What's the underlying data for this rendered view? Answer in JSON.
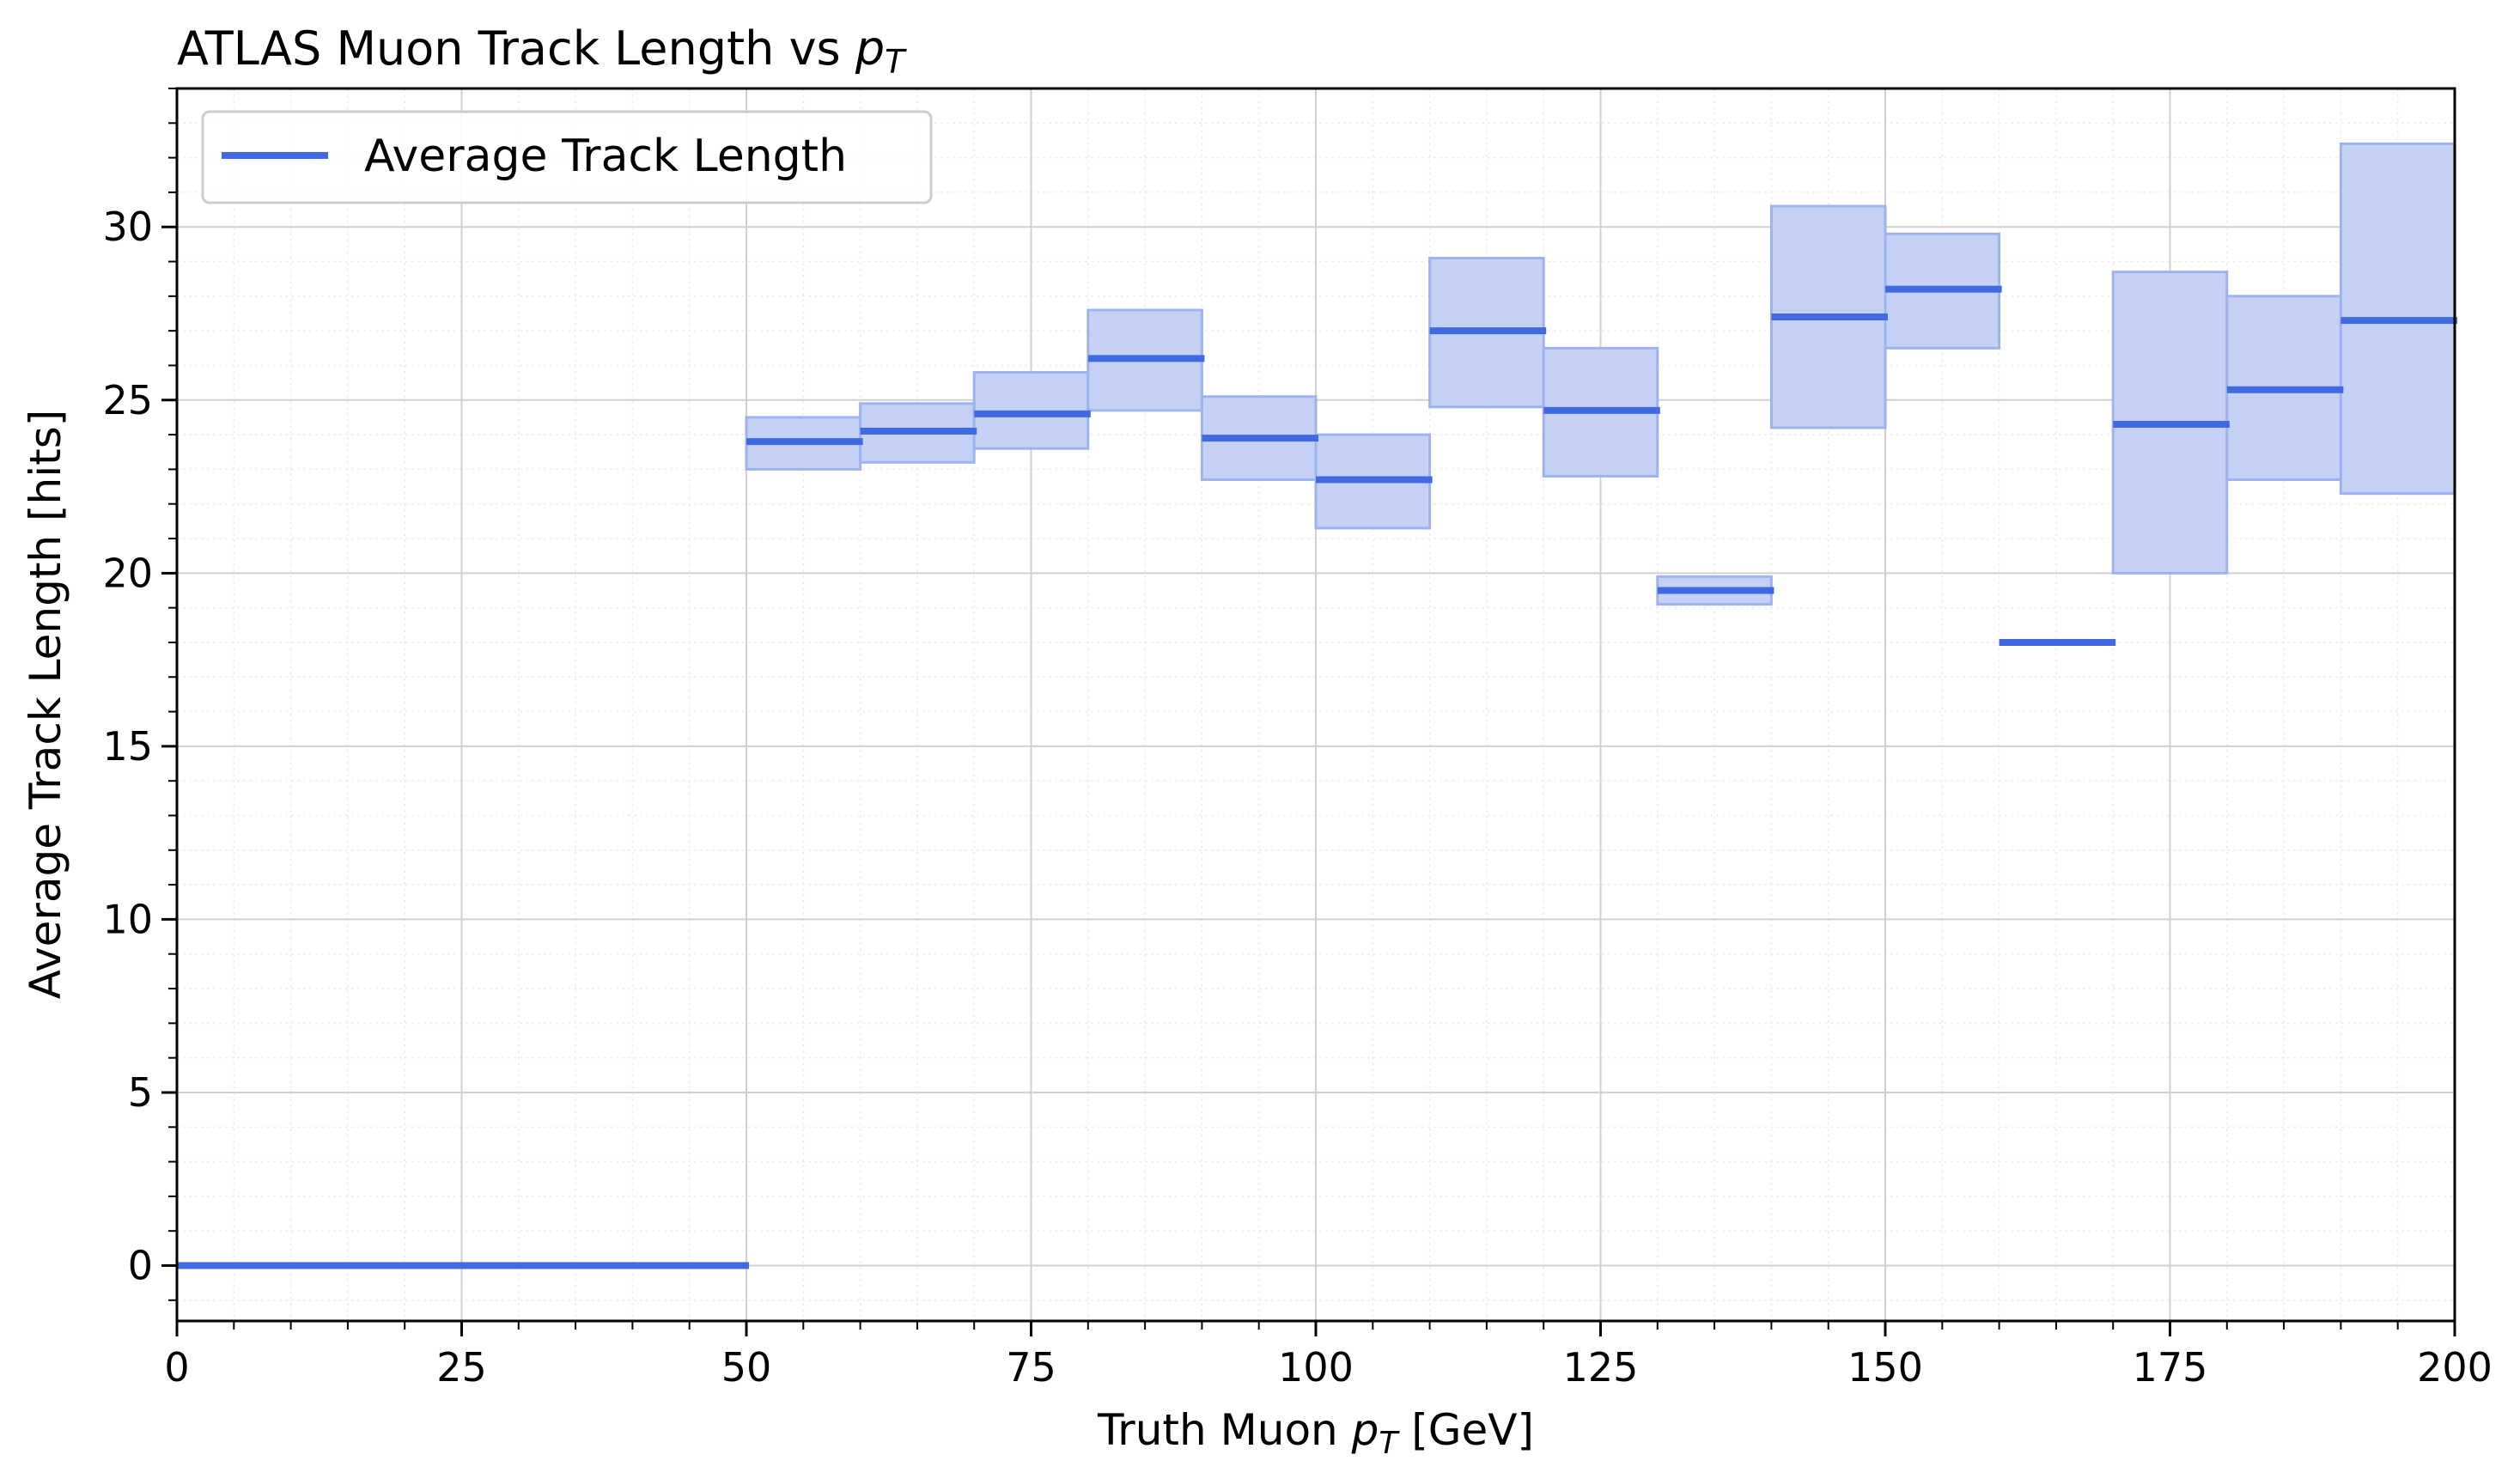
{
  "chart_data": {
    "type": "bar",
    "title": "ATLAS Muon Track Length vs ",
    "title_math": "p",
    "title_sub": "T",
    "xlabel": "Truth Muon ",
    "xlabel_math": "p",
    "xlabel_sub": "T",
    "xlabel_unit": " [GeV]",
    "ylabel": "Average Track Length [hits]",
    "xlim": [
      0,
      200
    ],
    "ylim": [
      -1.6,
      34
    ],
    "xticks": [
      "0",
      "25",
      "50",
      "75",
      "100",
      "125",
      "150",
      "175",
      "200"
    ],
    "yticks": [
      "0",
      "5",
      "10",
      "15",
      "20",
      "25",
      "30"
    ],
    "grid": true,
    "legend": {
      "placement": "top-left",
      "label": "Average Track Length"
    },
    "colors": {
      "line": "#4169e1",
      "band": "#c5d1f4",
      "band_edge": "#9eb3ee"
    },
    "bins": [
      {
        "x0": 0,
        "x1": 10,
        "mean": 0,
        "low": 0,
        "high": 0
      },
      {
        "x0": 10,
        "x1": 20,
        "mean": 0,
        "low": 0,
        "high": 0
      },
      {
        "x0": 20,
        "x1": 30,
        "mean": 0,
        "low": 0,
        "high": 0
      },
      {
        "x0": 30,
        "x1": 40,
        "mean": 0,
        "low": 0,
        "high": 0
      },
      {
        "x0": 40,
        "x1": 50,
        "mean": 0,
        "low": 0,
        "high": 0
      },
      {
        "x0": 50,
        "x1": 60,
        "mean": 23.8,
        "low": 23.0,
        "high": 24.5
      },
      {
        "x0": 60,
        "x1": 70,
        "mean": 24.1,
        "low": 23.2,
        "high": 24.9
      },
      {
        "x0": 70,
        "x1": 80,
        "mean": 24.6,
        "low": 23.6,
        "high": 25.8
      },
      {
        "x0": 80,
        "x1": 90,
        "mean": 26.2,
        "low": 24.7,
        "high": 27.6
      },
      {
        "x0": 90,
        "x1": 100,
        "mean": 23.9,
        "low": 22.7,
        "high": 25.1
      },
      {
        "x0": 100,
        "x1": 110,
        "mean": 22.7,
        "low": 21.3,
        "high": 24.0
      },
      {
        "x0": 110,
        "x1": 120,
        "mean": 27.0,
        "low": 24.8,
        "high": 29.1
      },
      {
        "x0": 120,
        "x1": 130,
        "mean": 24.7,
        "low": 22.8,
        "high": 26.5
      },
      {
        "x0": 130,
        "x1": 140,
        "mean": 19.5,
        "low": 19.1,
        "high": 19.9
      },
      {
        "x0": 140,
        "x1": 150,
        "mean": 27.4,
        "low": 24.2,
        "high": 30.6
      },
      {
        "x0": 150,
        "x1": 160,
        "mean": 28.2,
        "low": 26.5,
        "high": 29.8
      },
      {
        "x0": 160,
        "x1": 170,
        "mean": 18.0,
        "low": 18.0,
        "high": 18.0
      },
      {
        "x0": 170,
        "x1": 180,
        "mean": 24.3,
        "low": 20.0,
        "high": 28.7
      },
      {
        "x0": 180,
        "x1": 190,
        "mean": 25.3,
        "low": 22.7,
        "high": 28.0
      },
      {
        "x0": 190,
        "x1": 200,
        "mean": 27.3,
        "low": 22.3,
        "high": 32.4
      }
    ]
  }
}
